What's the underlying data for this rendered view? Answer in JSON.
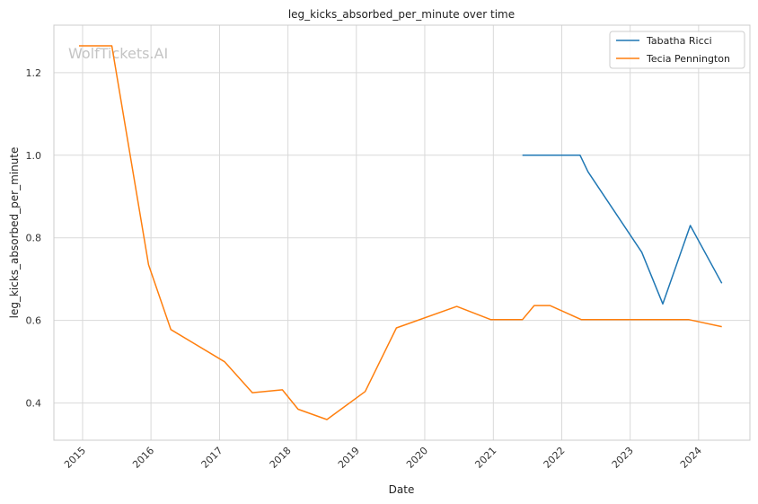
{
  "chart_data": {
    "type": "line",
    "title": "leg_kicks_absorbed_per_minute over time",
    "xlabel": "Date",
    "ylabel": "leg_kicks_absorbed_per_minute",
    "watermark": "WolfTickets.AI",
    "xlim": [
      "2014-08-01",
      "2024-10-01"
    ],
    "ylim": [
      0.31,
      1.315
    ],
    "x_ticks": [
      "2015",
      "2016",
      "2017",
      "2018",
      "2019",
      "2020",
      "2021",
      "2022",
      "2023",
      "2024"
    ],
    "y_ticks": [
      "0.4",
      "0.6",
      "0.8",
      "1.0",
      "1.2"
    ],
    "grid": true,
    "legend_position": "top-right",
    "series": [
      {
        "name": "Tabatha Ricci",
        "color": "#1f77b4",
        "points": [
          {
            "x": "2021-06-05",
            "y": 1.0
          },
          {
            "x": "2022-04-09",
            "y": 1.0
          },
          {
            "x": "2022-05-21",
            "y": 0.96
          },
          {
            "x": "2023-03-04",
            "y": 0.765
          },
          {
            "x": "2023-06-24",
            "y": 0.64
          },
          {
            "x": "2023-11-18",
            "y": 0.83
          },
          {
            "x": "2024-05-04",
            "y": 0.69
          }
        ]
      },
      {
        "name": "Tecia Pennington",
        "color": "#ff7f0e",
        "points": [
          {
            "x": "2014-12-13",
            "y": 1.265
          },
          {
            "x": "2015-06-06",
            "y": 1.265
          },
          {
            "x": "2015-12-19",
            "y": 0.735
          },
          {
            "x": "2016-04-16",
            "y": 0.578
          },
          {
            "x": "2017-01-28",
            "y": 0.5
          },
          {
            "x": "2017-06-25",
            "y": 0.425
          },
          {
            "x": "2017-12-02",
            "y": 0.432
          },
          {
            "x": "2018-02-24",
            "y": 0.385
          },
          {
            "x": "2018-07-28",
            "y": 0.36
          },
          {
            "x": "2019-02-17",
            "y": 0.428
          },
          {
            "x": "2019-08-03",
            "y": 0.582
          },
          {
            "x": "2020-06-20",
            "y": 0.634
          },
          {
            "x": "2020-12-19",
            "y": 0.602
          },
          {
            "x": "2021-06-05",
            "y": 0.602
          },
          {
            "x": "2021-08-07",
            "y": 0.636
          },
          {
            "x": "2021-10-30",
            "y": 0.636
          },
          {
            "x": "2022-04-16",
            "y": 0.602
          },
          {
            "x": "2023-11-11",
            "y": 0.602
          },
          {
            "x": "2024-05-04",
            "y": 0.585
          }
        ]
      }
    ]
  }
}
